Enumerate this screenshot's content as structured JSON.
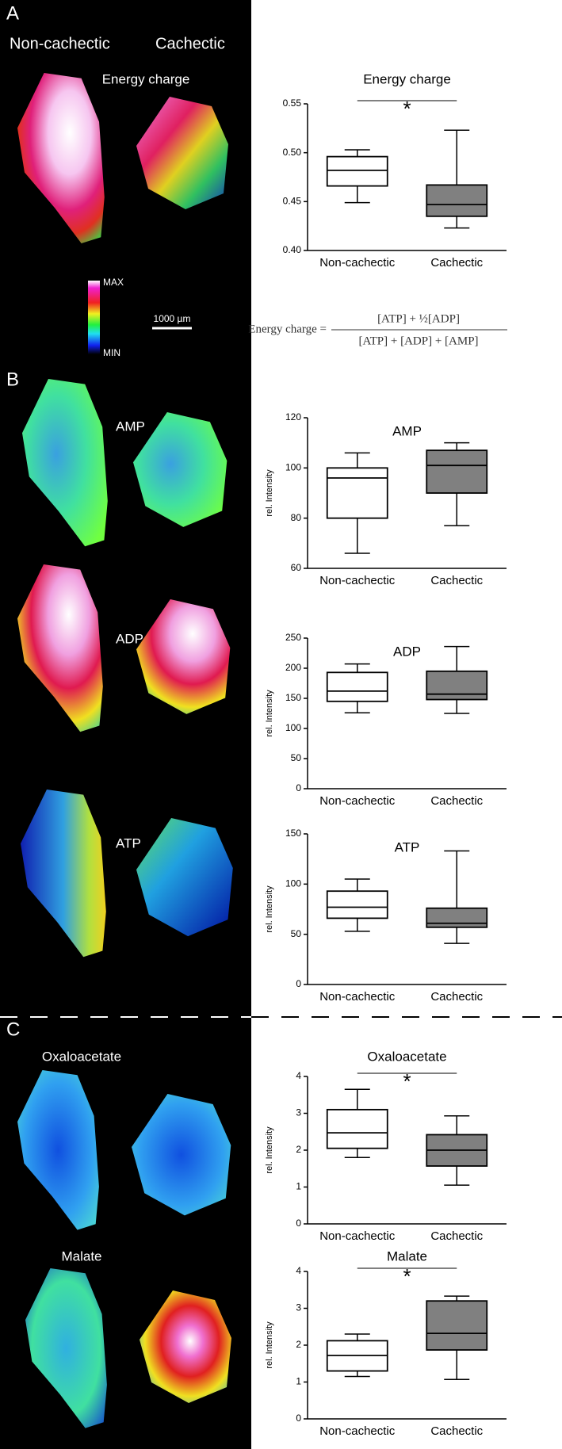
{
  "panels": {
    "a": "A",
    "b": "B",
    "c": "C",
    "non_cachectic": "Non-cachectic",
    "cachectic": "Cachectic",
    "energy_charge": "Energy charge",
    "max": "MAX",
    "min": "MIN",
    "scale": "1000 µm",
    "amp": "AMP",
    "adp": "ADP",
    "atp": "ATP",
    "oxaloacetate": "Oxaloacetate",
    "malate": "Malate"
  },
  "formula": {
    "lhs": "Energy charge =",
    "numerator": "[ATP] + ½[ADP]",
    "denominator": "[ATP] + [ADP] + [AMP]"
  },
  "chart_data": [
    {
      "type": "box",
      "title": "Energy charge",
      "categories": [
        "Non-cachectic",
        "Cachectic"
      ],
      "boxes": [
        {
          "min": 0.449,
          "q1": 0.466,
          "median": 0.482,
          "q3": 0.496,
          "max": 0.503,
          "color": "#ffffff"
        },
        {
          "min": 0.423,
          "q1": 0.435,
          "median": 0.447,
          "q3": 0.467,
          "max": 0.523,
          "color": "#808080"
        }
      ],
      "ylim": [
        0.4,
        0.55
      ],
      "yticks": [
        {
          "value": 0.4,
          "label": "0.40"
        },
        {
          "value": 0.45,
          "label": "0.45"
        },
        {
          "value": 0.5,
          "label": "0.50"
        },
        {
          "value": 0.55,
          "label": "0.55"
        }
      ],
      "annotation": "*"
    },
    {
      "type": "box",
      "title": "AMP",
      "y_label": "rel. Intensity",
      "categories": [
        "Non-cachectic",
        "Cachectic"
      ],
      "boxes": [
        {
          "min": 66,
          "q1": 80,
          "median": 96,
          "q3": 100,
          "max": 106,
          "color": "#ffffff"
        },
        {
          "min": 77,
          "q1": 90,
          "median": 101,
          "q3": 107,
          "max": 110,
          "color": "#808080"
        }
      ],
      "ylim": [
        60,
        120
      ],
      "yticks": [
        60,
        80,
        100,
        120
      ]
    },
    {
      "type": "box",
      "title": "ADP",
      "y_label": "rel. Intensity",
      "categories": [
        "Non-cachectic",
        "Cachectic"
      ],
      "boxes": [
        {
          "min": 126,
          "q1": 145,
          "median": 162,
          "q3": 193,
          "max": 207,
          "color": "#ffffff"
        },
        {
          "min": 125,
          "q1": 148,
          "median": 157,
          "q3": 195,
          "max": 236,
          "color": "#808080"
        }
      ],
      "ylim": [
        0,
        250
      ],
      "yticks": [
        0,
        50,
        100,
        150,
        200,
        250
      ]
    },
    {
      "type": "box",
      "title": "ATP",
      "y_label": "rel. Intensity",
      "categories": [
        "Non-cachectic",
        "Cachectic"
      ],
      "boxes": [
        {
          "min": 53,
          "q1": 66,
          "median": 77,
          "q3": 93,
          "max": 105,
          "color": "#ffffff"
        },
        {
          "min": 41,
          "q1": 57,
          "median": 61,
          "q3": 76,
          "max": 133,
          "color": "#808080"
        }
      ],
      "ylim": [
        0,
        150
      ],
      "yticks": [
        0,
        50,
        100,
        150
      ]
    },
    {
      "type": "box",
      "title": "Oxaloacetate",
      "y_label": "rel. Intensity",
      "categories": [
        "Non-cachectic",
        "Cachectic"
      ],
      "boxes": [
        {
          "min": 1.8,
          "q1": 2.05,
          "median": 2.47,
          "q3": 3.1,
          "max": 3.65,
          "color": "#ffffff"
        },
        {
          "min": 1.05,
          "q1": 1.57,
          "median": 2.0,
          "q3": 2.42,
          "max": 2.93,
          "color": "#808080"
        }
      ],
      "ylim": [
        0,
        4
      ],
      "yticks": [
        0,
        1,
        2,
        3,
        4
      ],
      "annotation": "*"
    },
    {
      "type": "box",
      "title": "Malate",
      "y_label": "rel. Intensity",
      "categories": [
        "Non-cachectic",
        "Cachectic"
      ],
      "boxes": [
        {
          "min": 1.15,
          "q1": 1.3,
          "median": 1.72,
          "q3": 2.12,
          "max": 2.3,
          "color": "#ffffff"
        },
        {
          "min": 1.07,
          "q1": 1.87,
          "median": 2.32,
          "q3": 3.2,
          "max": 3.33,
          "color": "#808080"
        }
      ],
      "ylim": [
        0,
        4
      ],
      "yticks": [
        0,
        1,
        2,
        3,
        4
      ],
      "annotation": "*"
    }
  ]
}
